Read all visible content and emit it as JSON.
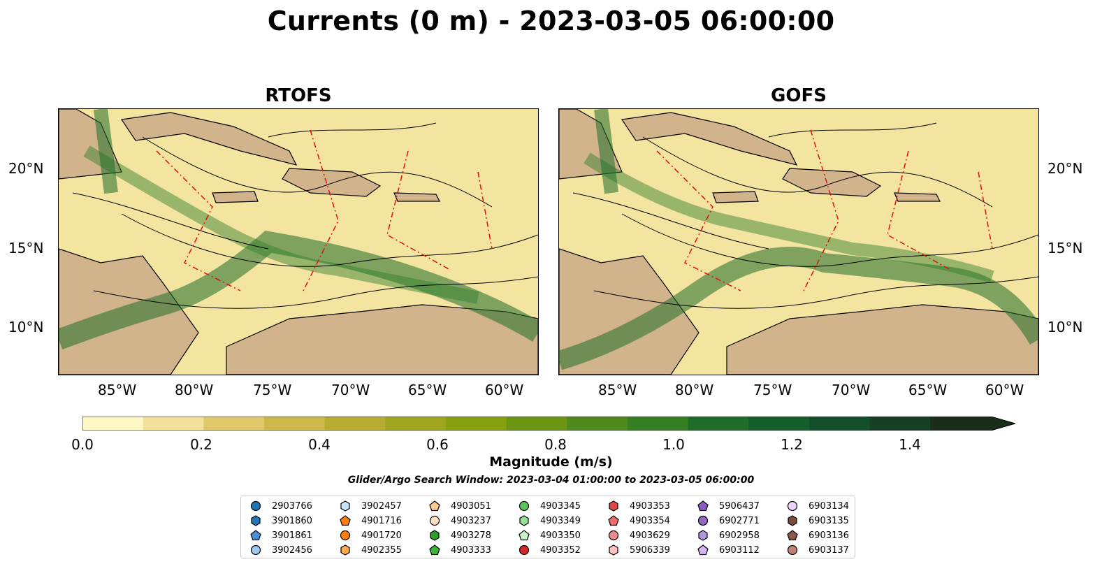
{
  "title": "Currents (0 m) - 2023-03-05 06:00:00",
  "panels": [
    {
      "title": "RTOFS"
    },
    {
      "title": "GOFS"
    }
  ],
  "lat_labels": [
    "20°N",
    "15°N",
    "10°N"
  ],
  "lon_labels": [
    "85°W",
    "80°W",
    "75°W",
    "70°W",
    "65°W",
    "60°W"
  ],
  "colorbar": {
    "label": "Magnitude (m/s)",
    "ticks": [
      "0.0",
      "0.2",
      "0.4",
      "0.6",
      "0.8",
      "1.0",
      "1.2",
      "1.4"
    ],
    "colors": [
      "#fff8c4",
      "#f3e09a",
      "#e1c86a",
      "#cfb74a",
      "#b8ac33",
      "#a0a51f",
      "#86a00e",
      "#6b9512",
      "#4f8a1c",
      "#357e22",
      "#1f6d2a",
      "#145f2b",
      "#13502a",
      "#173f25",
      "#1a2d1a"
    ]
  },
  "search_window": "Glider/Argo Search Window: 2023-03-04 01:00:00 to 2023-03-05 06:00:00",
  "legend": [
    {
      "id": "2903766",
      "color": "#1f77b4",
      "shape": "circle"
    },
    {
      "id": "3901860",
      "color": "#1f77b4",
      "shape": "hexagon"
    },
    {
      "id": "3901861",
      "color": "#4a90d9",
      "shape": "pentagon"
    },
    {
      "id": "3902456",
      "color": "#9ec9ee",
      "shape": "circle"
    },
    {
      "id": "3902457",
      "color": "#c6e5fb",
      "shape": "hexagon"
    },
    {
      "id": "4901716",
      "color": "#ff7f0e",
      "shape": "pentagon"
    },
    {
      "id": "4901720",
      "color": "#ff7f0e",
      "shape": "circle"
    },
    {
      "id": "4902355",
      "color": "#ffa94d",
      "shape": "hexagon"
    },
    {
      "id": "4903051",
      "color": "#ffc890",
      "shape": "pentagon"
    },
    {
      "id": "4903237",
      "color": "#ffe0c2",
      "shape": "circle"
    },
    {
      "id": "4903278",
      "color": "#2ca02c",
      "shape": "hexagon"
    },
    {
      "id": "4903333",
      "color": "#3cb43c",
      "shape": "pentagon"
    },
    {
      "id": "4903345",
      "color": "#5cc45c",
      "shape": "circle"
    },
    {
      "id": "4903349",
      "color": "#98e098",
      "shape": "hexagon"
    },
    {
      "id": "4903350",
      "color": "#c8f5c8",
      "shape": "pentagon"
    },
    {
      "id": "4903352",
      "color": "#d62728",
      "shape": "circle"
    },
    {
      "id": "4903353",
      "color": "#e04848",
      "shape": "hexagon"
    },
    {
      "id": "4903354",
      "color": "#ef6a6a",
      "shape": "pentagon"
    },
    {
      "id": "4903629",
      "color": "#f28b8b",
      "shape": "circle"
    },
    {
      "id": "5906339",
      "color": "#ffc0c0",
      "shape": "hexagon"
    },
    {
      "id": "5906437",
      "color": "#8a5cc0",
      "shape": "pentagon"
    },
    {
      "id": "6902771",
      "color": "#9467bd",
      "shape": "circle"
    },
    {
      "id": "6902958",
      "color": "#b596dc",
      "shape": "hexagon"
    },
    {
      "id": "6903112",
      "color": "#d2b6f0",
      "shape": "pentagon"
    },
    {
      "id": "6903134",
      "color": "#ebd4ff",
      "shape": "circle"
    },
    {
      "id": "6903135",
      "color": "#7a4b3a",
      "shape": "hexagon"
    },
    {
      "id": "6903136",
      "color": "#8c564b",
      "shape": "pentagon"
    },
    {
      "id": "6903137",
      "color": "#c48074",
      "shape": "circle"
    }
  ]
}
